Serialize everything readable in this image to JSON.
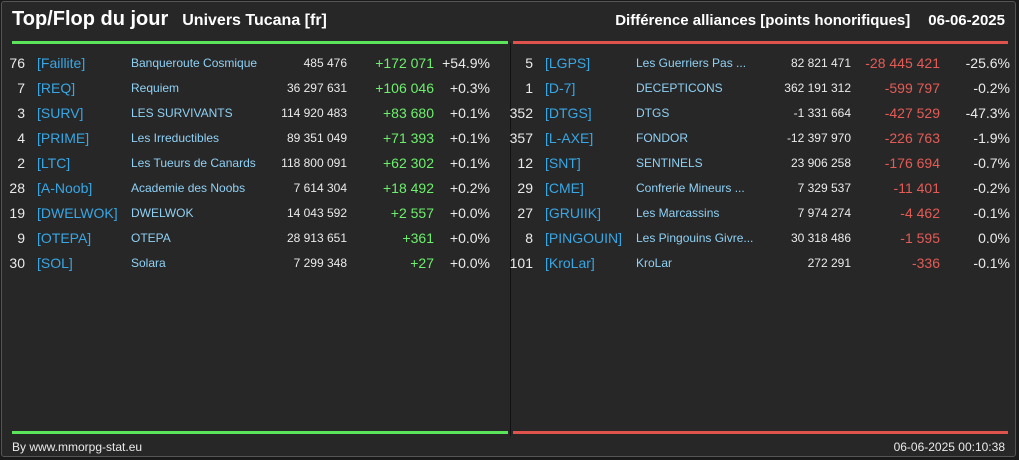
{
  "header": {
    "title": "Top/Flop du jour",
    "subtitle": "Univers Tucana [fr]",
    "right_title": "Différence alliances [points honorifiques]",
    "date": "06-06-2025"
  },
  "colors": {
    "up": "#6cf06c",
    "down": "#e45b56",
    "tag": "#37a7e6",
    "name": "#8fd1f5"
  },
  "top": [
    {
      "rank": "76",
      "tag": "[Faillite]",
      "name": "Banqueroute Cosmique",
      "points": "485 476",
      "diff": "+172 071",
      "pct": "+54.9%"
    },
    {
      "rank": "7",
      "tag": "[REQ]",
      "name": "Requiem",
      "points": "36 297 631",
      "diff": "+106 046",
      "pct": "+0.3%"
    },
    {
      "rank": "3",
      "tag": "[SURV]",
      "name": "LES SURVIVANTS",
      "points": "114 920 483",
      "diff": "+83 680",
      "pct": "+0.1%"
    },
    {
      "rank": "4",
      "tag": "[PRIME]",
      "name": "Les Irreductibles",
      "points": "89 351 049",
      "diff": "+71 393",
      "pct": "+0.1%"
    },
    {
      "rank": "2",
      "tag": "[LTC]",
      "name": "Les Tueurs de Canards",
      "points": "118 800 091",
      "diff": "+62 302",
      "pct": "+0.1%"
    },
    {
      "rank": "28",
      "tag": "[A-Noob]",
      "name": "Academie des Noobs",
      "points": "7 614 304",
      "diff": "+18 492",
      "pct": "+0.2%"
    },
    {
      "rank": "19",
      "tag": "[DWELWOK]",
      "name": "DWELWOK",
      "points": "14 043 592",
      "diff": "+2 557",
      "pct": "+0.0%"
    },
    {
      "rank": "9",
      "tag": "[OTEPA]",
      "name": "OTEPA",
      "points": "28 913 651",
      "diff": "+361",
      "pct": "+0.0%"
    },
    {
      "rank": "30",
      "tag": "[SOL]",
      "name": "Solara",
      "points": "7 299 348",
      "diff": "+27",
      "pct": "+0.0%"
    }
  ],
  "flop": [
    {
      "rank": "5",
      "tag": "[LGPS]",
      "name": "Les Guerriers Pas ...",
      "points": "82 821 471",
      "diff": "-28 445 421",
      "pct": "-25.6%"
    },
    {
      "rank": "1",
      "tag": "[D-7]",
      "name": "DECEPTICONS",
      "points": "362 191 312",
      "diff": "-599 797",
      "pct": "-0.2%"
    },
    {
      "rank": "352",
      "tag": "[DTGS]",
      "name": "DTGS",
      "points": "-1 331 664",
      "diff": "-427 529",
      "pct": "-47.3%"
    },
    {
      "rank": "357",
      "tag": "[L-AXE]",
      "name": "FONDOR",
      "points": "-12 397 970",
      "diff": "-226 763",
      "pct": "-1.9%"
    },
    {
      "rank": "12",
      "tag": "[SNT]",
      "name": "SENTINELS",
      "points": "23 906 258",
      "diff": "-176 694",
      "pct": "-0.7%"
    },
    {
      "rank": "29",
      "tag": "[CME]",
      "name": "Confrerie Mineurs ...",
      "points": "7 329 537",
      "diff": "-11 401",
      "pct": "-0.2%"
    },
    {
      "rank": "27",
      "tag": "[GRUIIK]",
      "name": "Les Marcassins",
      "points": "7 974 274",
      "diff": "-4 462",
      "pct": "-0.1%"
    },
    {
      "rank": "8",
      "tag": "[PINGOUIN]",
      "name": "Les Pingouins Givre...",
      "points": "30 318 486",
      "diff": "-1 595",
      "pct": "0.0%"
    },
    {
      "rank": "101",
      "tag": "[KroLar]",
      "name": "KroLar",
      "points": "272 291",
      "diff": "-336",
      "pct": "-0.1%"
    }
  ],
  "footer": {
    "source": "By www.mmorpg-stat.eu",
    "timestamp": "06-06-2025 00:10:38"
  }
}
